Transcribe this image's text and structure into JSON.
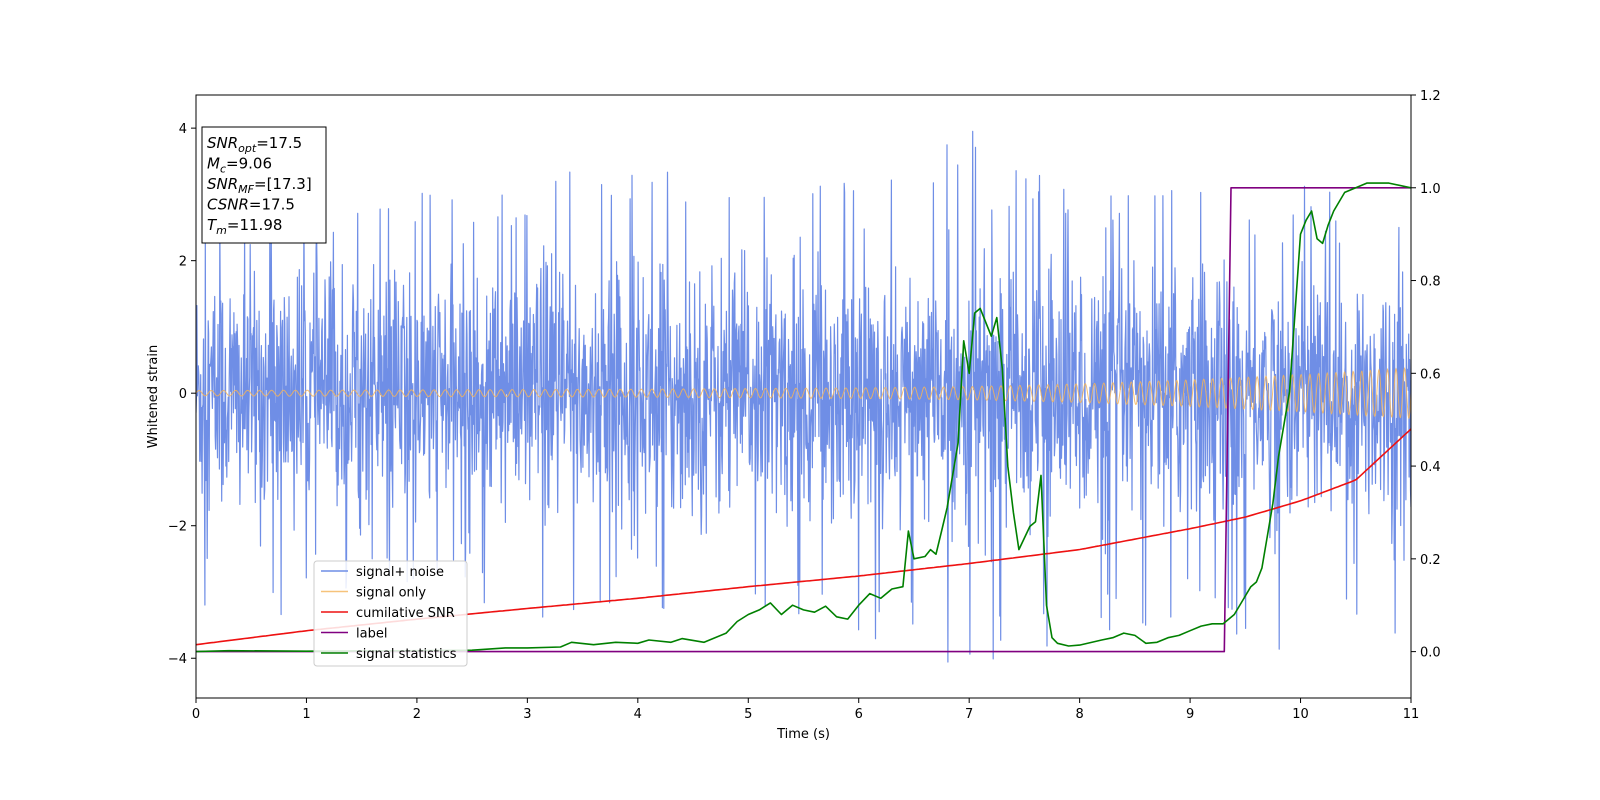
{
  "chart_data": {
    "type": "line",
    "title": "",
    "xlabel": "Time (s)",
    "ylabel": "Whitened strain",
    "xlim": [
      0,
      11
    ],
    "ylim": [
      -4.6,
      4.5
    ],
    "y2lim": [
      -0.1,
      1.2
    ],
    "xticks": [
      0,
      1,
      2,
      3,
      4,
      5,
      6,
      7,
      8,
      9,
      10,
      11
    ],
    "yticks": [
      -4,
      -2,
      0,
      2,
      4
    ],
    "y2ticks": [
      "0.0",
      "0.2",
      "0.4",
      "0.6",
      "0.8",
      "1.0",
      "1.2"
    ],
    "legend_placement": "lower-left",
    "grid": false,
    "series": [
      {
        "name": "signal+ noise",
        "color": "#6f8ee6",
        "axis": "left",
        "description_kind": "noise",
        "envelope_x": [
          0,
          1,
          2,
          3,
          4,
          5,
          6,
          7,
          8,
          9,
          10,
          11
        ],
        "envelope_hi": [
          2.9,
          3.0,
          3.0,
          3.3,
          3.6,
          3.2,
          3.4,
          4.1,
          3.0,
          3.3,
          3.2,
          3.5
        ],
        "envelope_lo": [
          -3.8,
          -3.3,
          -3.0,
          -3.4,
          -3.3,
          -3.5,
          -3.7,
          -4.2,
          -3.7,
          -3.4,
          -4.0,
          -3.6
        ]
      },
      {
        "name": "signal only",
        "color": "#f4b45a",
        "axis": "left",
        "amplitude_x": [
          0,
          2,
          4,
          6,
          7,
          8,
          9,
          10,
          11
        ],
        "amplitude": [
          0.04,
          0.05,
          0.06,
          0.08,
          0.1,
          0.14,
          0.2,
          0.28,
          0.38
        ]
      },
      {
        "name": "cumilative SNR",
        "color": "#ee1111",
        "axis": "right",
        "x": [
          0,
          1,
          2,
          3,
          4,
          5,
          6,
          7,
          8,
          9,
          9.5,
          10,
          10.5,
          11
        ],
        "y": [
          0.015,
          0.045,
          0.07,
          0.093,
          0.115,
          0.14,
          0.163,
          0.19,
          0.22,
          0.265,
          0.29,
          0.325,
          0.37,
          0.48
        ]
      },
      {
        "name": "label",
        "color": "#800080",
        "axis": "right",
        "x": [
          0,
          9.31,
          9.37,
          11
        ],
        "y": [
          0,
          0,
          1,
          1
        ]
      },
      {
        "name": "signal statistics",
        "color": "#008000",
        "axis": "right",
        "x": [
          0,
          0.3,
          1,
          2,
          2.5,
          2.8,
          3,
          3.3,
          3.4,
          3.6,
          3.8,
          4,
          4.1,
          4.3,
          4.4,
          4.6,
          4.8,
          4.9,
          5,
          5.1,
          5.2,
          5.3,
          5.4,
          5.5,
          5.6,
          5.7,
          5.8,
          5.9,
          6,
          6.1,
          6.2,
          6.3,
          6.4,
          6.45,
          6.5,
          6.6,
          6.65,
          6.7,
          6.75,
          6.8,
          6.85,
          6.9,
          6.95,
          7,
          7.05,
          7.1,
          7.2,
          7.25,
          7.3,
          7.35,
          7.4,
          7.45,
          7.5,
          7.55,
          7.6,
          7.65,
          7.7,
          7.75,
          7.8,
          7.9,
          8,
          8.2,
          8.3,
          8.4,
          8.5,
          8.6,
          8.7,
          8.8,
          8.9,
          9,
          9.1,
          9.2,
          9.3,
          9.4,
          9.5,
          9.55,
          9.6,
          9.65,
          9.7,
          9.75,
          9.8,
          9.9,
          10,
          10.05,
          10.1,
          10.15,
          10.2,
          10.25,
          10.3,
          10.4,
          10.5,
          10.6,
          10.8,
          11
        ],
        "y": [
          0,
          0.002,
          0.001,
          0.002,
          0.003,
          0.008,
          0.008,
          0.01,
          0.02,
          0.015,
          0.02,
          0.018,
          0.025,
          0.02,
          0.028,
          0.02,
          0.04,
          0.065,
          0.08,
          0.09,
          0.105,
          0.08,
          0.1,
          0.09,
          0.085,
          0.098,
          0.075,
          0.07,
          0.1,
          0.125,
          0.115,
          0.135,
          0.14,
          0.26,
          0.2,
          0.205,
          0.22,
          0.21,
          0.26,
          0.31,
          0.38,
          0.45,
          0.67,
          0.6,
          0.73,
          0.74,
          0.68,
          0.72,
          0.61,
          0.4,
          0.3,
          0.22,
          0.245,
          0.27,
          0.28,
          0.38,
          0.1,
          0.03,
          0.018,
          0.012,
          0.014,
          0.025,
          0.03,
          0.04,
          0.035,
          0.018,
          0.02,
          0.03,
          0.035,
          0.045,
          0.055,
          0.06,
          0.06,
          0.08,
          0.12,
          0.14,
          0.15,
          0.18,
          0.25,
          0.32,
          0.42,
          0.56,
          0.9,
          0.93,
          0.95,
          0.89,
          0.88,
          0.92,
          0.95,
          0.99,
          1.0,
          1.01,
          1.01,
          1.0
        ]
      }
    ],
    "info_box": [
      {
        "main": "SNR",
        "sub": "opt",
        "rest": "=17.5"
      },
      {
        "main": "M",
        "sub": "c",
        "rest": "=9.06"
      },
      {
        "main": "SNR",
        "sub": "MF",
        "rest": "=[17.3]"
      },
      {
        "main": "CSNR",
        "sub": "",
        "rest": "=17.5"
      },
      {
        "main": "T",
        "sub": "m",
        "rest": "=11.98"
      }
    ]
  }
}
